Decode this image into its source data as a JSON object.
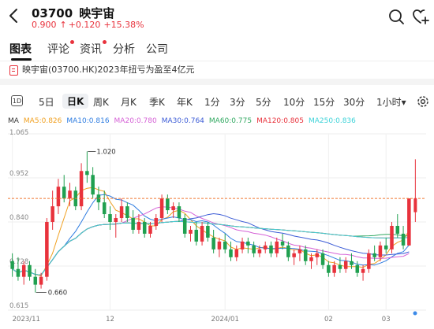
{
  "header": {
    "code": "03700",
    "name": "映宇宙",
    "price": "0.900",
    "change_arrow": "↑",
    "change": "+0.120",
    "change_pct": "+15.38%",
    "icons": [
      "back-arrow-icon",
      "search-icon",
      "add-watchlist-heart-icon"
    ]
  },
  "tabs": [
    {
      "label": "图表",
      "active": true,
      "dot": false
    },
    {
      "label": "评论",
      "active": false,
      "dot": true
    },
    {
      "label": "资讯",
      "active": false,
      "dot": true
    },
    {
      "label": "分析",
      "active": false,
      "dot": false
    },
    {
      "label": "公司",
      "active": false,
      "dot": false
    }
  ],
  "news": {
    "text": "映宇宙(03700.HK)2023年扭亏为盈至4亿元",
    "icon": "news-document-icon"
  },
  "periods": {
    "icon_label": "1D",
    "items": [
      "5日",
      "日K",
      "周K",
      "月K",
      "季K",
      "年K",
      "1分",
      "3分",
      "5分",
      "10分",
      "15分",
      "30分",
      "1小时▾"
    ],
    "active": "日K",
    "settings_icon": "settings-gear-icon"
  },
  "ma_legend": [
    {
      "label": "MA",
      "color": "#333333"
    },
    {
      "label": "MA5:0.826",
      "color": "#f0a020"
    },
    {
      "label": "MA10:0.816",
      "color": "#2f7de1"
    },
    {
      "label": "MA20:0.780",
      "color": "#d561d6"
    },
    {
      "label": "MA30:0.764",
      "color": "#3b5bd6"
    },
    {
      "label": "MA60:0.775",
      "color": "#30a860"
    },
    {
      "label": "MA120:0.805",
      "color": "#e8323c"
    },
    {
      "label": "MA250:0.836",
      "color": "#3cd2d8"
    }
  ],
  "chart_data": {
    "type": "candlestick",
    "y_ticks": [
      "1.065",
      "0.952",
      "0.840",
      "0.728",
      "0.615"
    ],
    "y_range": [
      0.615,
      1.065
    ],
    "x_ticks": [
      "2023/11",
      "12",
      "2024/01",
      "02",
      "03"
    ],
    "annotations": {
      "high": "1.020",
      "low": "0.660"
    },
    "last_price_line": 0.9,
    "up_color": "#e8323c",
    "down_color": "#20a050",
    "candles": [
      [
        0.74,
        0.76,
        0.7,
        0.72
      ],
      [
        0.72,
        0.75,
        0.69,
        0.7
      ],
      [
        0.7,
        0.74,
        0.68,
        0.73
      ],
      [
        0.73,
        0.74,
        0.69,
        0.7
      ],
      [
        0.7,
        0.72,
        0.66,
        0.68
      ],
      [
        0.68,
        0.71,
        0.67,
        0.7
      ],
      [
        0.7,
        0.85,
        0.69,
        0.84
      ],
      [
        0.84,
        0.92,
        0.82,
        0.88
      ],
      [
        0.88,
        0.95,
        0.86,
        0.93
      ],
      [
        0.93,
        0.96,
        0.89,
        0.9
      ],
      [
        0.9,
        0.94,
        0.88,
        0.92
      ],
      [
        0.92,
        0.93,
        0.87,
        0.88
      ],
      [
        0.88,
        0.99,
        0.87,
        0.97
      ],
      [
        0.97,
        1.02,
        0.94,
        0.96
      ],
      [
        0.96,
        0.98,
        0.9,
        0.91
      ],
      [
        0.91,
        0.93,
        0.87,
        0.89
      ],
      [
        0.89,
        0.92,
        0.85,
        0.86
      ],
      [
        0.86,
        0.88,
        0.82,
        0.84
      ],
      [
        0.84,
        0.86,
        0.8,
        0.85
      ],
      [
        0.85,
        0.9,
        0.84,
        0.88
      ],
      [
        0.88,
        0.89,
        0.84,
        0.85
      ],
      [
        0.85,
        0.87,
        0.81,
        0.82
      ],
      [
        0.82,
        0.86,
        0.81,
        0.84
      ],
      [
        0.84,
        0.85,
        0.8,
        0.81
      ],
      [
        0.81,
        0.84,
        0.8,
        0.83
      ],
      [
        0.83,
        0.86,
        0.82,
        0.85
      ],
      [
        0.85,
        0.91,
        0.84,
        0.9
      ],
      [
        0.9,
        0.91,
        0.86,
        0.87
      ],
      [
        0.87,
        0.89,
        0.85,
        0.88
      ],
      [
        0.88,
        0.89,
        0.84,
        0.85
      ],
      [
        0.85,
        0.86,
        0.8,
        0.81
      ],
      [
        0.81,
        0.83,
        0.79,
        0.82
      ],
      [
        0.82,
        0.84,
        0.78,
        0.79
      ],
      [
        0.79,
        0.84,
        0.78,
        0.83
      ],
      [
        0.83,
        0.84,
        0.79,
        0.8
      ],
      [
        0.8,
        0.82,
        0.76,
        0.77
      ],
      [
        0.77,
        0.8,
        0.75,
        0.79
      ],
      [
        0.79,
        0.81,
        0.76,
        0.77
      ],
      [
        0.77,
        0.79,
        0.74,
        0.75
      ],
      [
        0.75,
        0.78,
        0.74,
        0.77
      ],
      [
        0.77,
        0.8,
        0.76,
        0.79
      ],
      [
        0.79,
        0.8,
        0.76,
        0.78
      ],
      [
        0.78,
        0.79,
        0.75,
        0.76
      ],
      [
        0.76,
        0.78,
        0.75,
        0.77
      ],
      [
        0.77,
        0.79,
        0.76,
        0.78
      ],
      [
        0.78,
        0.79,
        0.75,
        0.76
      ],
      [
        0.76,
        0.8,
        0.75,
        0.79
      ],
      [
        0.79,
        0.81,
        0.77,
        0.78
      ],
      [
        0.78,
        0.79,
        0.74,
        0.75
      ],
      [
        0.75,
        0.77,
        0.73,
        0.76
      ],
      [
        0.76,
        0.78,
        0.74,
        0.77
      ],
      [
        0.77,
        0.78,
        0.73,
        0.74
      ],
      [
        0.74,
        0.76,
        0.72,
        0.75
      ],
      [
        0.75,
        0.77,
        0.73,
        0.76
      ],
      [
        0.76,
        0.77,
        0.72,
        0.73
      ],
      [
        0.73,
        0.74,
        0.7,
        0.71
      ],
      [
        0.71,
        0.74,
        0.7,
        0.73
      ],
      [
        0.73,
        0.75,
        0.71,
        0.72
      ],
      [
        0.72,
        0.75,
        0.71,
        0.74
      ],
      [
        0.74,
        0.76,
        0.72,
        0.73
      ],
      [
        0.73,
        0.74,
        0.7,
        0.71
      ],
      [
        0.71,
        0.73,
        0.69,
        0.72
      ],
      [
        0.72,
        0.77,
        0.71,
        0.76
      ],
      [
        0.76,
        0.78,
        0.74,
        0.75
      ],
      [
        0.75,
        0.79,
        0.74,
        0.78
      ],
      [
        0.78,
        0.8,
        0.76,
        0.77
      ],
      [
        0.77,
        0.84,
        0.76,
        0.83
      ],
      [
        0.83,
        0.86,
        0.8,
        0.81
      ],
      [
        0.81,
        0.83,
        0.77,
        0.78
      ],
      [
        0.78,
        0.9,
        0.78,
        0.9
      ]
    ]
  }
}
